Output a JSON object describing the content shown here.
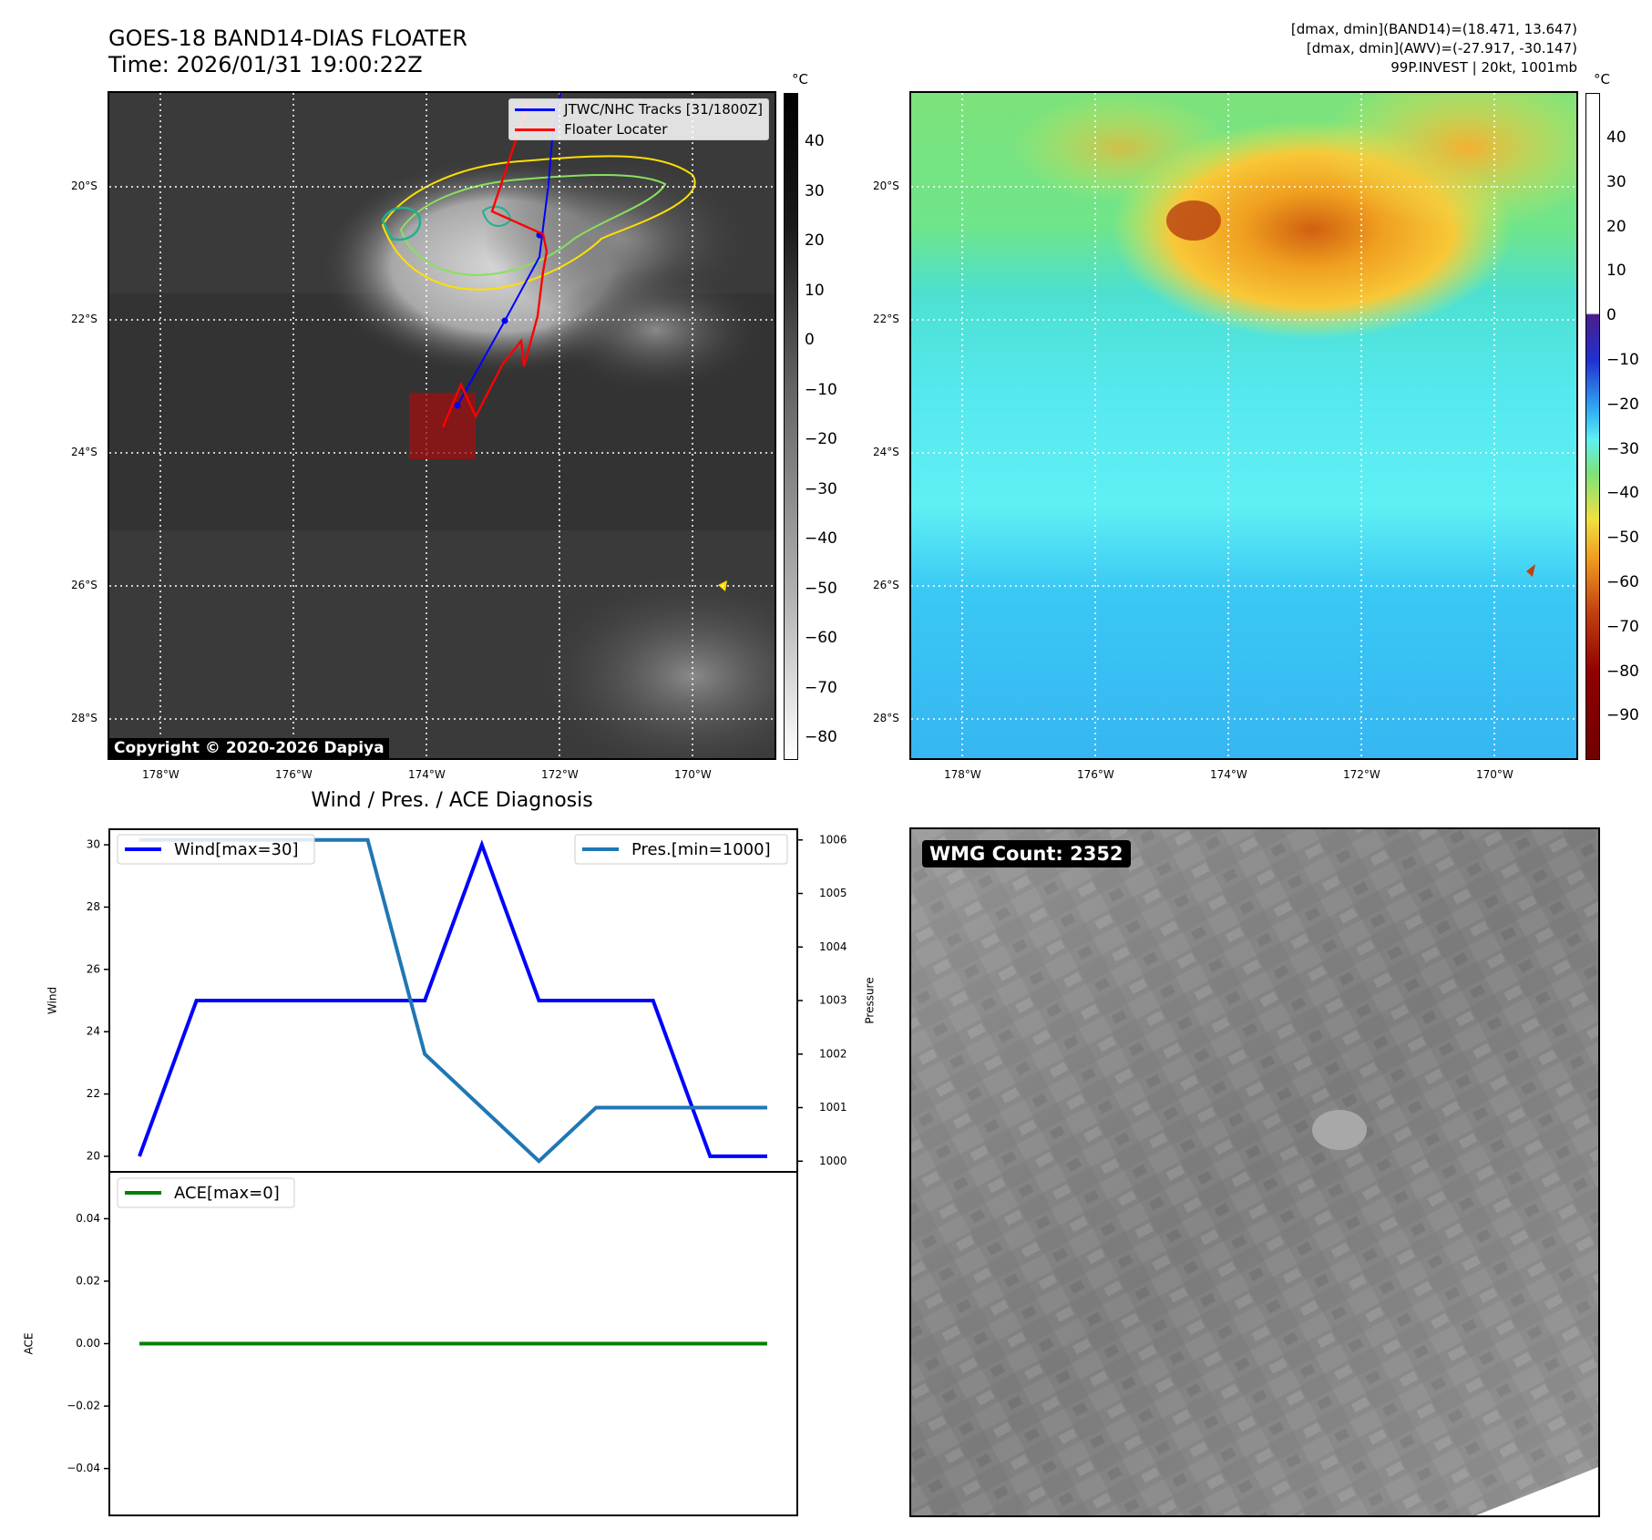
{
  "header": {
    "title": "GOES-18 BAND14-DIAS FLOATER",
    "time": "Time: 2026/01/31 19:00:22Z",
    "info_line1": "[dmax, dmin](BAND14)=(18.471, 13.647)",
    "info_line2": "[dmax, dmin](AWV)=(-27.917, -30.147)",
    "info_line3": "99P.INVEST | 20kt, 1001mb"
  },
  "map_left": {
    "copyright": "Copyright © 2020-2026 Dapiya",
    "legend": [
      "JTWC/NHC Tracks [31/1800Z]",
      "Floater Locater"
    ],
    "legend_colors": [
      "#0000ff",
      "#ff0000"
    ],
    "lat_labels": [
      "20°S",
      "22°S",
      "24°S",
      "26°S",
      "28°S"
    ],
    "lon_labels": [
      "178°W",
      "176°W",
      "174°W",
      "172°W",
      "170°W"
    ],
    "colorbar_unit": "°C",
    "colorbar_ticks": [
      "40",
      "30",
      "20",
      "10",
      "0",
      "−10",
      "−20",
      "−30",
      "−40",
      "−50",
      "−60",
      "−70",
      "−80"
    ]
  },
  "map_right": {
    "lat_labels": [
      "20°S",
      "22°S",
      "24°S",
      "26°S",
      "28°S"
    ],
    "lon_labels": [
      "178°W",
      "176°W",
      "174°W",
      "172°W",
      "170°W"
    ],
    "colorbar_unit": "°C",
    "colorbar_ticks": [
      "40",
      "30",
      "20",
      "10",
      "0",
      "−10",
      "−20",
      "−30",
      "−40",
      "−50",
      "−60",
      "−70",
      "−80",
      "−90"
    ]
  },
  "chart_data": [
    {
      "type": "line",
      "title": "Wind / Pres. / ACE Diagnosis",
      "ylabel": "Wind",
      "ylabel_right": "Pressure",
      "x": [
        0,
        1,
        2,
        3,
        4,
        5,
        6,
        7,
        8,
        9,
        10,
        11
      ],
      "ylim": [
        19.5,
        30.5
      ],
      "ylim_right": [
        999.8,
        1006.2
      ],
      "yticks": [
        "30",
        "28",
        "26",
        "24",
        "22",
        "20"
      ],
      "yticks_right": [
        "1006",
        "1005",
        "1004",
        "1003",
        "1002",
        "1001",
        "1000"
      ],
      "series": [
        {
          "name": "Wind[max=30]",
          "axis": "left",
          "color": "#0000ff",
          "values": [
            20,
            25,
            25,
            25,
            25,
            25,
            30,
            25,
            25,
            25,
            20,
            20
          ]
        },
        {
          "name": "Pres.[min=1000]",
          "axis": "right",
          "color": "#1f77b4",
          "values": [
            1006,
            1006,
            1006,
            1006,
            1006,
            1002,
            1001,
            1000,
            1001,
            1001,
            1001,
            1001
          ]
        }
      ]
    },
    {
      "type": "line",
      "ylabel": "ACE",
      "x": [
        0,
        11
      ],
      "ylim": [
        -0.055,
        0.055
      ],
      "yticks": [
        "0.04",
        "0.02",
        "0.00",
        "−0.02",
        "−0.04"
      ],
      "series": [
        {
          "name": "ACE[max=0]",
          "color": "#008000",
          "values": [
            0,
            0
          ]
        }
      ]
    }
  ],
  "wmg": {
    "badge": "WMG Count: 2352"
  }
}
